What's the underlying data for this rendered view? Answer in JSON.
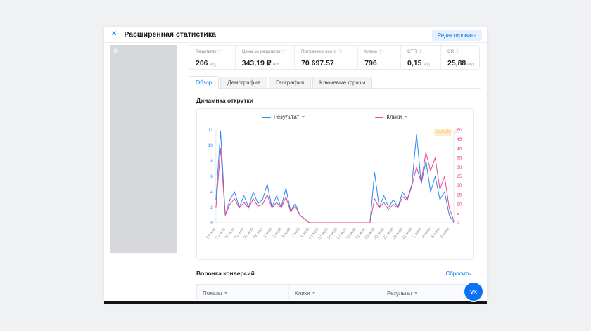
{
  "icons": {
    "close": "✕",
    "info": "ⓘ",
    "warning": "⚠",
    "vk": "VK"
  },
  "window": {
    "title": "Расширенная статистика",
    "edit_button": "Редактировать"
  },
  "stats": [
    {
      "label": "Результат",
      "value": "206",
      "suffix": "н/д"
    },
    {
      "label": "Цена за результат",
      "value": "343,19 ₽",
      "suffix": "н/д"
    },
    {
      "label": "Потрачено всего",
      "value": "70 697.57",
      "suffix": ""
    },
    {
      "label": "Клики",
      "value": "796",
      "suffix": ""
    },
    {
      "label": "CTR",
      "value": "0,15",
      "suffix": "н/д"
    },
    {
      "label": "CR",
      "value": "25,88",
      "suffix": "н/д"
    }
  ],
  "tabs": [
    {
      "label": "Обзор",
      "active": true
    },
    {
      "label": "Демография",
      "active": false
    },
    {
      "label": "География",
      "active": false
    },
    {
      "label": "Ключевые фразы",
      "active": false
    }
  ],
  "chart_section": {
    "title": "Динамика открутки"
  },
  "funnel": {
    "title": "Воронка конверсий",
    "reset_label": "Сбросить",
    "columns": [
      "Показы",
      "Клики",
      "Результат"
    ]
  },
  "chart_data": {
    "type": "line",
    "title": "Динамика открутки",
    "points_per_label": 2,
    "x_tick_labels": [
      "19 апр",
      "21 апр",
      "23 апр",
      "25 апр",
      "27 апр",
      "29 апр",
      "1 май",
      "3 май",
      "5 май",
      "7 май",
      "9 май",
      "11 май",
      "13 май",
      "15 май",
      "17 май",
      "19 май",
      "21 май",
      "23 май",
      "25 май",
      "27 май",
      "29 май",
      "31 май",
      "2 июн",
      "4 июн",
      "6 июн",
      "8 июн"
    ],
    "left_axis": {
      "label": "Результат",
      "color": "#2787f5",
      "ticks": [
        0,
        2,
        4,
        6,
        8,
        10,
        12
      ],
      "max": 12
    },
    "right_axis": {
      "label": "Клики",
      "color": "#e8468a",
      "ticks": [
        0,
        5,
        10,
        15,
        20,
        25,
        30,
        35,
        40,
        45,
        50
      ],
      "max": 50
    },
    "series": [
      {
        "name": "Результат",
        "axis": "left",
        "color": "#2787f5",
        "values": [
          3,
          11.8,
          1,
          3,
          4,
          2,
          3.5,
          2,
          4,
          2.5,
          3,
          5,
          2,
          3.5,
          2,
          4.5,
          1.5,
          2.5,
          1,
          0.5,
          0,
          0,
          0,
          0,
          0,
          0,
          0,
          0,
          0,
          0,
          0,
          0,
          0,
          0,
          6.5,
          2,
          3.5,
          2,
          3,
          2,
          4,
          3,
          5,
          11.5,
          5,
          8,
          4,
          6,
          3,
          4,
          1,
          0
        ]
      },
      {
        "name": "Клики",
        "axis": "right",
        "color": "#e8468a",
        "values": [
          8,
          40,
          4,
          10,
          13,
          8,
          11,
          8,
          13,
          9,
          10,
          15,
          8,
          11,
          8,
          14,
          6,
          9,
          4,
          2,
          0,
          0,
          0,
          0,
          0,
          0,
          0,
          0,
          0,
          0,
          0,
          0,
          0,
          0,
          13,
          8,
          11,
          7,
          10,
          8,
          14,
          12,
          20,
          30,
          22,
          38,
          28,
          35,
          18,
          25,
          8,
          1
        ]
      }
    ],
    "legend_position": "top",
    "grid": false,
    "warning_count": 4
  }
}
